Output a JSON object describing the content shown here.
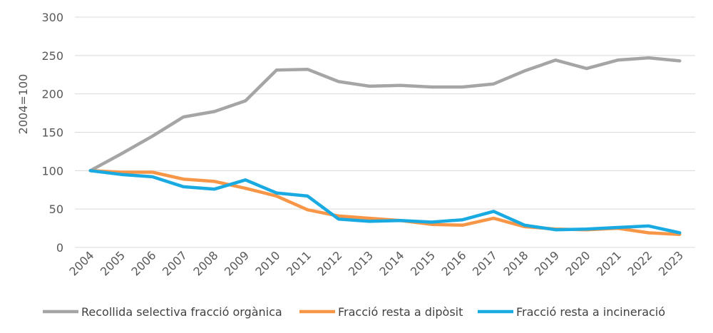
{
  "chart_data": {
    "type": "line",
    "title": "",
    "xlabel": "",
    "ylabel": "2004=100",
    "ylim": [
      0,
      300
    ],
    "yticks": [
      0,
      50,
      100,
      150,
      200,
      250,
      300
    ],
    "grid": "horizontal",
    "legend_position": "bottom",
    "categories": [
      "2004",
      "2005",
      "2006",
      "2007",
      "2008",
      "2009",
      "2010",
      "2011",
      "2012",
      "2013",
      "2014",
      "2015",
      "2016",
      "2017",
      "2018",
      "2019",
      "2020",
      "2021",
      "2022",
      "2023"
    ],
    "series": [
      {
        "name": "Recollida selectiva fracció orgànica",
        "color": "#a5a5a5",
        "values": [
          100,
          122,
          145,
          170,
          177,
          191,
          231,
          232,
          216,
          210,
          211,
          209,
          209,
          213,
          230,
          244,
          233,
          244,
          247,
          243
        ]
      },
      {
        "name": "Fracció resta a dipòsit",
        "color": "#f79646",
        "values": [
          100,
          98,
          98,
          89,
          86,
          77,
          67,
          49,
          41,
          38,
          35,
          30,
          29,
          38,
          27,
          24,
          23,
          25,
          19,
          17
        ]
      },
      {
        "name": "Fracció resta a incineració",
        "color": "#1aaae2",
        "values": [
          100,
          95,
          92,
          79,
          76,
          88,
          71,
          67,
          37,
          34,
          35,
          33,
          36,
          47,
          29,
          23,
          24,
          26,
          28,
          19
        ]
      }
    ]
  }
}
